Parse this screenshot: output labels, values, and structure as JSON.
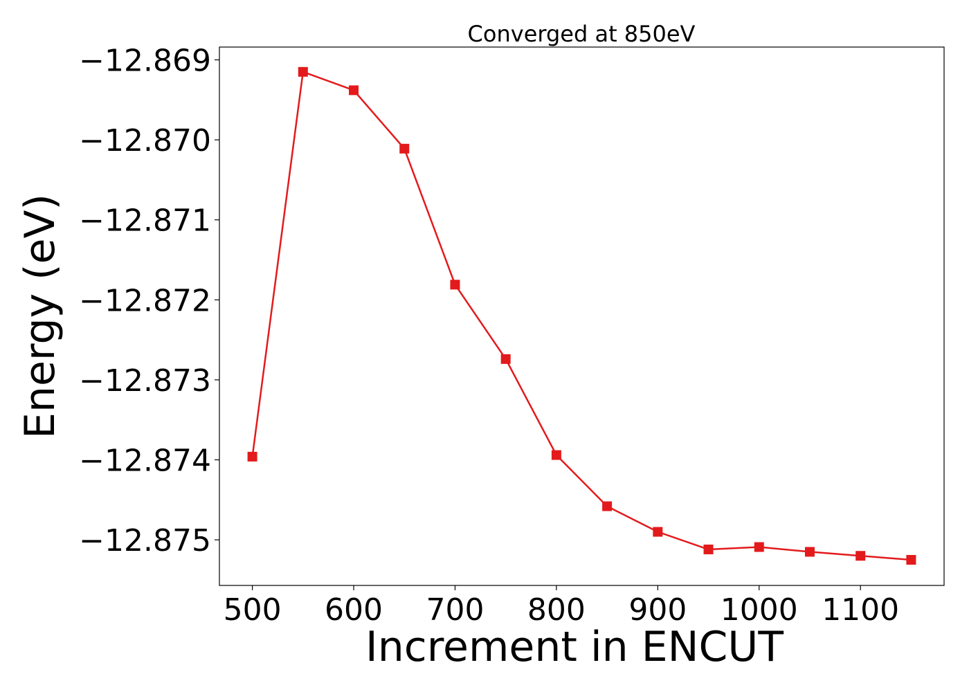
{
  "chart_data": {
    "type": "line",
    "title": "Converged at 850eV",
    "xlabel": "Increment in ENCUT",
    "ylabel": "Energy (eV)",
    "x": [
      500,
      550,
      600,
      650,
      700,
      750,
      800,
      850,
      900,
      950,
      1000,
      1050,
      1100,
      1150
    ],
    "series": [
      {
        "values": [
          -12.87396,
          -12.86915,
          -12.86938,
          -12.87011,
          -12.87181,
          -12.87274,
          -12.87394,
          -12.87458,
          -12.8749,
          -12.87512,
          -12.87509,
          -12.87515,
          -12.8752,
          -12.87525
        ],
        "color": "#e31a1c",
        "marker": "square"
      }
    ],
    "xticks": [
      500,
      600,
      700,
      800,
      900,
      1000,
      1100
    ],
    "xtick_labels": [
      "500",
      "600",
      "700",
      "800",
      "900",
      "1000",
      "1100"
    ],
    "yticks": [
      -12.869,
      -12.87,
      -12.871,
      -12.872,
      -12.873,
      -12.874,
      -12.875
    ],
    "ytick_labels": [
      "−12.869",
      "−12.870",
      "−12.871",
      "−12.872",
      "−12.873",
      "−12.874",
      "−12.875"
    ],
    "xlim": [
      467.5,
      1182.5
    ],
    "ylim": [
      -12.87557,
      -12.86884
    ],
    "grid": false,
    "legend": "none"
  }
}
